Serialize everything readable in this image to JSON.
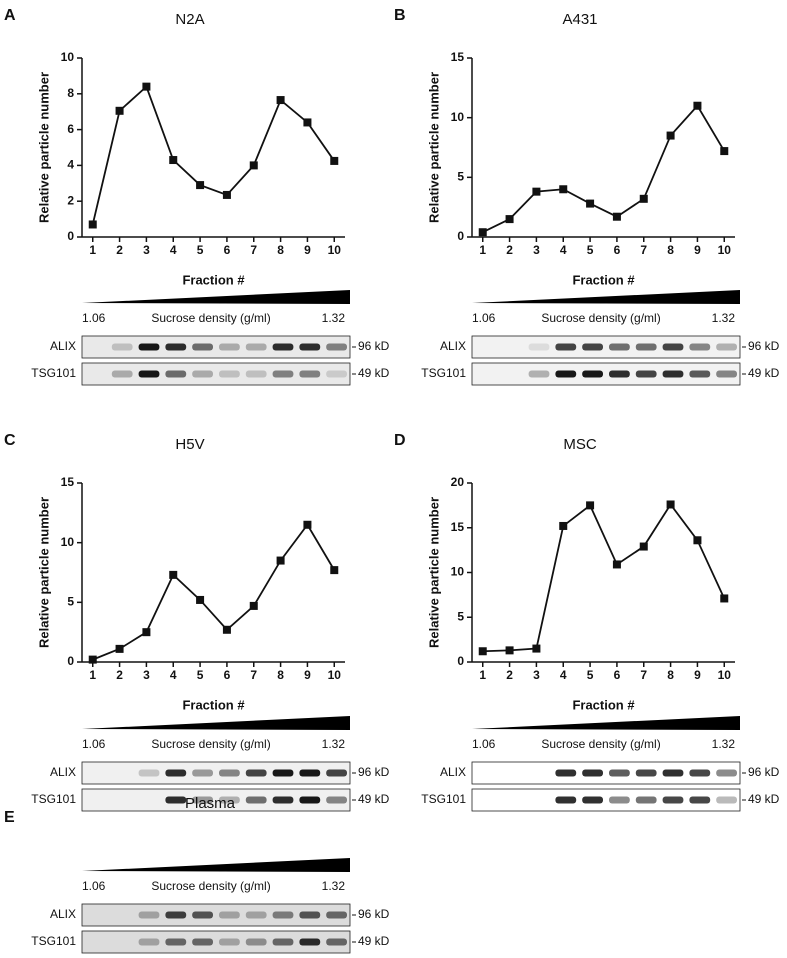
{
  "chart_data": [
    {
      "type": "line",
      "panel": "A",
      "title": "N2A",
      "x_label": "Fraction #",
      "y_label": "Relative particle number",
      "x": [
        1,
        2,
        3,
        4,
        5,
        6,
        7,
        8,
        9,
        10
      ],
      "values": [
        0.7,
        7.05,
        8.4,
        4.3,
        2.9,
        2.35,
        4.0,
        7.65,
        6.4,
        4.25
      ],
      "color": "#111111",
      "xlim": [
        0.6,
        10.4
      ],
      "xticks": [
        1,
        2,
        3,
        4,
        5,
        6,
        7,
        8,
        9,
        10
      ],
      "ylim": [
        0,
        10
      ],
      "yticks": [
        0,
        2,
        4,
        6,
        8,
        10
      ]
    },
    {
      "type": "line",
      "panel": "B",
      "title": "A431",
      "x_label": "Fraction #",
      "y_label": "Relative particle number",
      "x": [
        1,
        2,
        3,
        4,
        5,
        6,
        7,
        8,
        9,
        10
      ],
      "values": [
        0.4,
        1.5,
        3.8,
        4.0,
        2.8,
        1.7,
        3.2,
        8.5,
        11.0,
        7.2
      ],
      "color": "#111111",
      "xlim": [
        0.6,
        10.4
      ],
      "xticks": [
        1,
        2,
        3,
        4,
        5,
        6,
        7,
        8,
        9,
        10
      ],
      "ylim": [
        0,
        15
      ],
      "yticks": [
        0,
        5,
        10,
        15
      ]
    },
    {
      "type": "line",
      "panel": "C",
      "title": "H5V",
      "x_label": "Fraction #",
      "y_label": "Relative particle number",
      "x": [
        1,
        2,
        3,
        4,
        5,
        6,
        7,
        8,
        9,
        10
      ],
      "values": [
        0.2,
        1.1,
        2.5,
        7.3,
        5.2,
        2.7,
        4.7,
        8.5,
        11.5,
        7.7
      ],
      "color": "#111111",
      "xlim": [
        0.6,
        10.4
      ],
      "xticks": [
        1,
        2,
        3,
        4,
        5,
        6,
        7,
        8,
        9,
        10
      ],
      "ylim": [
        0,
        15
      ],
      "yticks": [
        0,
        5,
        10,
        15
      ]
    },
    {
      "type": "line",
      "panel": "D",
      "title": "MSC",
      "x_label": "Fraction #",
      "y_label": "Relative particle number",
      "x": [
        1,
        2,
        3,
        4,
        5,
        6,
        7,
        8,
        9,
        10
      ],
      "values": [
        1.2,
        1.3,
        1.5,
        15.2,
        17.5,
        10.9,
        12.9,
        17.6,
        13.6,
        7.1
      ],
      "color": "#111111",
      "xlim": [
        0.6,
        10.4
      ],
      "xticks": [
        1,
        2,
        3,
        4,
        5,
        6,
        7,
        8,
        9,
        10
      ],
      "ylim": [
        0,
        20
      ],
      "yticks": [
        0,
        5,
        10,
        15,
        20
      ]
    }
  ],
  "blots": [
    {
      "low": "1.06",
      "axis_label": "Sucrose density (g/ml)",
      "high": "1.32",
      "rows": [
        {
          "label": "ALIX",
          "size": "96 kD"
        },
        {
          "label": "TSG101",
          "size": "49 kD"
        }
      ]
    },
    {
      "low": "1.06",
      "axis_label": "Sucrose density (g/ml)",
      "high": "1.32",
      "rows": [
        {
          "label": "ALIX",
          "size": "96 kD"
        },
        {
          "label": "TSG101",
          "size": "49 kD"
        }
      ]
    },
    {
      "low": "1.06",
      "axis_label": "Sucrose density (g/ml)",
      "high": "1.32",
      "rows": [
        {
          "label": "ALIX",
          "size": "96 kD"
        },
        {
          "label": "TSG101",
          "size": "49 kD"
        }
      ]
    },
    {
      "low": "1.06",
      "axis_label": "Sucrose density (g/ml)",
      "high": "1.32",
      "rows": [
        {
          "label": "ALIX",
          "size": "96 kD"
        },
        {
          "label": "TSG101",
          "size": "49 kD"
        }
      ]
    },
    {
      "panel": "E",
      "title": "Plasma",
      "low": "1.06",
      "axis_label": "Sucrose density (g/ml)",
      "high": "1.32",
      "rows": [
        {
          "label": "ALIX",
          "size": "96 kD"
        },
        {
          "label": "TSG101",
          "size": "49 kD"
        }
      ]
    }
  ]
}
